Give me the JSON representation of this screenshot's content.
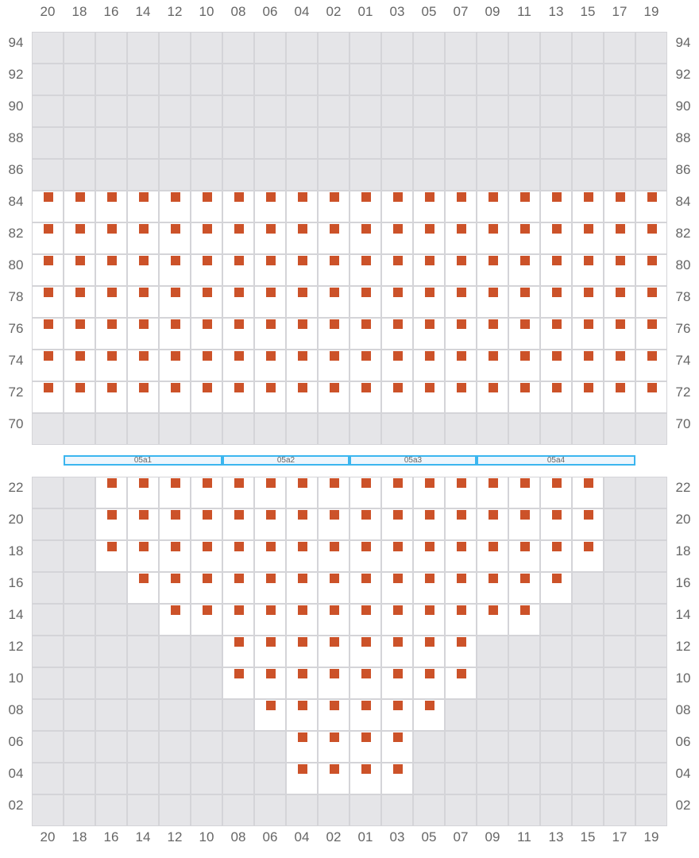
{
  "columns": [
    "20",
    "18",
    "16",
    "14",
    "12",
    "10",
    "08",
    "06",
    "04",
    "02",
    "01",
    "03",
    "05",
    "07",
    "09",
    "11",
    "13",
    "15",
    "17",
    "19"
  ],
  "seat_color": "#cc5229",
  "blocks": [
    {
      "rows": [
        {
          "label": "94",
          "available": []
        },
        {
          "label": "92",
          "available": []
        },
        {
          "label": "90",
          "available": []
        },
        {
          "label": "88",
          "available": []
        },
        {
          "label": "86",
          "available": []
        },
        {
          "label": "84",
          "available": [
            0,
            19
          ]
        },
        {
          "label": "82",
          "available": [
            0,
            19
          ]
        },
        {
          "label": "80",
          "available": [
            0,
            19
          ]
        },
        {
          "label": "78",
          "available": [
            0,
            19
          ]
        },
        {
          "label": "76",
          "available": [
            0,
            19
          ]
        },
        {
          "label": "74",
          "available": [
            0,
            19
          ]
        },
        {
          "label": "72",
          "available": [
            0,
            19
          ]
        },
        {
          "label": "70",
          "available": []
        }
      ]
    },
    {
      "rows": [
        {
          "label": "22",
          "available": [
            2,
            17
          ]
        },
        {
          "label": "20",
          "available": [
            2,
            17
          ]
        },
        {
          "label": "18",
          "available": [
            2,
            17
          ]
        },
        {
          "label": "16",
          "available": [
            3,
            16
          ]
        },
        {
          "label": "14",
          "available": [
            4,
            15
          ]
        },
        {
          "label": "12",
          "available": [
            6,
            13
          ]
        },
        {
          "label": "10",
          "available": [
            6,
            13
          ]
        },
        {
          "label": "08",
          "available": [
            7,
            12
          ]
        },
        {
          "label": "06",
          "available": [
            8,
            11
          ]
        },
        {
          "label": "04",
          "available": [
            8,
            11
          ]
        },
        {
          "label": "02",
          "available": []
        }
      ]
    }
  ],
  "sections": [
    {
      "label": "05a1",
      "from": 1,
      "to": 6
    },
    {
      "label": "05a2",
      "from": 6,
      "to": 10
    },
    {
      "label": "05a3",
      "from": 10,
      "to": 14
    },
    {
      "label": "05a4",
      "from": 14,
      "to": 19
    }
  ]
}
